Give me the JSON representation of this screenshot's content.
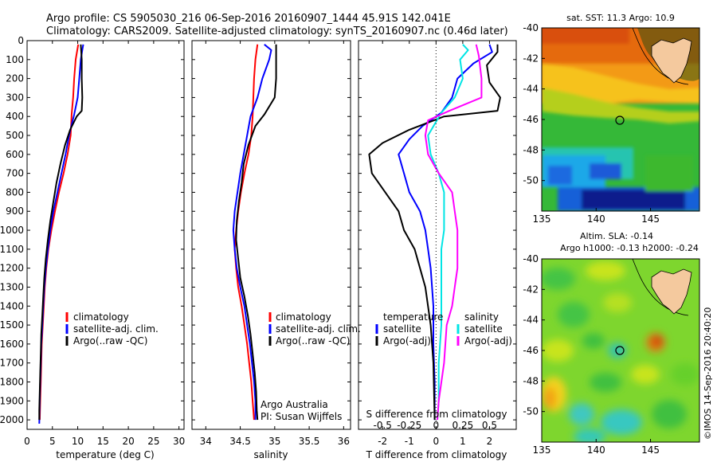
{
  "header": {
    "line1": "Argo profile: CS 5905030_216 06-Sep-2016 20160907_1444 45.91S 142.041E",
    "line2": "Climatology: CARS2009. Satellite-adjusted climatology: synTS_20160907.nc (0.46d later)"
  },
  "colors": {
    "climatology": "#ff0000",
    "satellite": "#0000ff",
    "argo": "#000000",
    "satellite_salinity": "#00e5e5",
    "argo_salinity": "#ff00ff"
  },
  "chart_data": [
    {
      "id": "temperature",
      "type": "line",
      "xlabel": "temperature (deg C)",
      "ylabel": "",
      "xlim": [
        0,
        31
      ],
      "ylim": [
        2050,
        0
      ],
      "xticks": [
        0,
        5,
        10,
        15,
        20,
        25,
        30
      ],
      "yticks": [
        0,
        100,
        200,
        300,
        400,
        500,
        600,
        700,
        800,
        900,
        1000,
        1100,
        1200,
        1300,
        1400,
        1500,
        1600,
        1700,
        1800,
        1900,
        2000
      ],
      "legend": [
        "climatology",
        "satellite-adj. clim.",
        "Argo(..raw -QC)"
      ],
      "series": [
        {
          "name": "climatology",
          "color": "#ff0000",
          "points": [
            [
              10.1,
              20
            ],
            [
              9.6,
              100
            ],
            [
              9.3,
              200
            ],
            [
              9.1,
              300
            ],
            [
              8.8,
              390
            ],
            [
              8.6,
              500
            ],
            [
              8.0,
              600
            ],
            [
              7.2,
              700
            ],
            [
              6.3,
              800
            ],
            [
              5.5,
              900
            ],
            [
              4.8,
              1000
            ],
            [
              4.2,
              1100
            ],
            [
              3.8,
              1200
            ],
            [
              3.5,
              1300
            ],
            [
              3.3,
              1400
            ],
            [
              3.1,
              1500
            ],
            [
              2.9,
              1600
            ],
            [
              2.8,
              1700
            ],
            [
              2.7,
              1800
            ],
            [
              2.6,
              1900
            ],
            [
              2.5,
              2000
            ]
          ]
        },
        {
          "name": "satellite-adj. clim.",
          "color": "#0000ff",
          "points": [
            [
              11.1,
              20
            ],
            [
              10.9,
              50
            ],
            [
              10.6,
              100
            ],
            [
              10.3,
              200
            ],
            [
              10.0,
              300
            ],
            [
              9.3,
              390
            ],
            [
              8.3,
              500
            ],
            [
              7.6,
              600
            ],
            [
              6.8,
              700
            ],
            [
              6.0,
              800
            ],
            [
              5.2,
              900
            ],
            [
              4.6,
              1000
            ],
            [
              4.1,
              1100
            ],
            [
              3.7,
              1200
            ],
            [
              3.4,
              1300
            ],
            [
              3.2,
              1400
            ],
            [
              3.0,
              1500
            ],
            [
              2.8,
              1600
            ],
            [
              2.7,
              1700
            ],
            [
              2.6,
              1800
            ],
            [
              2.5,
              1900
            ],
            [
              2.4,
              2020
            ]
          ]
        },
        {
          "name": "Argo(..raw -QC)",
          "color": "#000000",
          "points": [
            [
              10.6,
              20
            ],
            [
              10.8,
              100
            ],
            [
              10.8,
              200
            ],
            [
              10.9,
              300
            ],
            [
              10.8,
              370
            ],
            [
              9.8,
              400
            ],
            [
              8.5,
              470
            ],
            [
              7.5,
              550
            ],
            [
              6.6,
              650
            ],
            [
              5.8,
              750
            ],
            [
              5.2,
              850
            ],
            [
              4.6,
              950
            ],
            [
              4.1,
              1050
            ],
            [
              3.7,
              1150
            ],
            [
              3.4,
              1250
            ],
            [
              3.2,
              1350
            ],
            [
              3.0,
              1450
            ],
            [
              2.8,
              1550
            ],
            [
              2.7,
              1650
            ],
            [
              2.6,
              1750
            ],
            [
              2.5,
              1850
            ],
            [
              2.4,
              1950
            ],
            [
              2.4,
              2000
            ]
          ]
        }
      ]
    },
    {
      "id": "salinity",
      "type": "line",
      "xlabel": "salinity",
      "ylabel": "",
      "xlim": [
        33.8,
        36.1
      ],
      "ylim": [
        2050,
        0
      ],
      "xticks": [
        34,
        34.5,
        35,
        35.5,
        36
      ],
      "legend": [
        "climatology",
        "satellite-adj. clim.",
        "Argo(..raw -QC)"
      ],
      "annotations": [
        "Argo Australia",
        "PI: Susan Wijffels"
      ],
      "series": [
        {
          "name": "climatology",
          "color": "#ff0000",
          "points": [
            [
              34.75,
              20
            ],
            [
              34.72,
              100
            ],
            [
              34.7,
              200
            ],
            [
              34.69,
              300
            ],
            [
              34.68,
              400
            ],
            [
              34.66,
              500
            ],
            [
              34.62,
              600
            ],
            [
              34.56,
              700
            ],
            [
              34.51,
              800
            ],
            [
              34.47,
              900
            ],
            [
              34.44,
              1000
            ],
            [
              34.42,
              1100
            ],
            [
              34.44,
              1200
            ],
            [
              34.47,
              1300
            ],
            [
              34.52,
              1400
            ],
            [
              34.56,
              1500
            ],
            [
              34.6,
              1600
            ],
            [
              34.63,
              1700
            ],
            [
              34.66,
              1800
            ],
            [
              34.68,
              1900
            ],
            [
              34.7,
              2000
            ]
          ]
        },
        {
          "name": "satellite-adj. clim.",
          "color": "#0000ff",
          "points": [
            [
              34.85,
              20
            ],
            [
              34.95,
              50
            ],
            [
              34.92,
              100
            ],
            [
              34.82,
              200
            ],
            [
              34.75,
              300
            ],
            [
              34.65,
              400
            ],
            [
              34.6,
              500
            ],
            [
              34.55,
              600
            ],
            [
              34.5,
              700
            ],
            [
              34.46,
              800
            ],
            [
              34.42,
              900
            ],
            [
              34.4,
              1000
            ],
            [
              34.42,
              1100
            ],
            [
              34.45,
              1200
            ],
            [
              34.5,
              1300
            ],
            [
              34.56,
              1400
            ],
            [
              34.6,
              1500
            ],
            [
              34.64,
              1600
            ],
            [
              34.67,
              1700
            ],
            [
              34.7,
              1800
            ],
            [
              34.72,
              1900
            ],
            [
              34.72,
              2000
            ]
          ]
        },
        {
          "name": "Argo(..raw -QC)",
          "color": "#000000",
          "points": [
            [
              35.02,
              20
            ],
            [
              35.02,
              100
            ],
            [
              35.02,
              200
            ],
            [
              35.0,
              300
            ],
            [
              34.85,
              390
            ],
            [
              34.72,
              450
            ],
            [
              34.62,
              550
            ],
            [
              34.55,
              650
            ],
            [
              34.52,
              750
            ],
            [
              34.48,
              850
            ],
            [
              34.45,
              950
            ],
            [
              34.44,
              1050
            ],
            [
              34.47,
              1150
            ],
            [
              34.5,
              1250
            ],
            [
              34.56,
              1350
            ],
            [
              34.61,
              1450
            ],
            [
              34.65,
              1550
            ],
            [
              34.68,
              1650
            ],
            [
              34.71,
              1750
            ],
            [
              34.73,
              1850
            ],
            [
              34.74,
              1950
            ],
            [
              34.75,
              2000
            ]
          ]
        }
      ]
    },
    {
      "id": "difference",
      "type": "line",
      "xlabel": "T difference from climatology",
      "secondary_xlabel": "S difference from climatology",
      "ylabel": "",
      "xlim": [
        -2.9,
        3.0
      ],
      "ylim": [
        2050,
        0
      ],
      "xticks": [
        -2,
        -1,
        0,
        1,
        2
      ],
      "secondary_xticks": [
        "-0.5",
        "-0.25",
        "0",
        "0.25",
        "0.5"
      ],
      "legend_groups": [
        {
          "title": "temperature",
          "entries": [
            "satellite",
            "Argo(-adj)"
          ]
        },
        {
          "title": "salinity",
          "entries": [
            "satellite",
            "Argo(-adj)"
          ]
        }
      ],
      "series": [
        {
          "name": "temperature satellite",
          "color": "#0000ff",
          "points": [
            [
              2.0,
              20
            ],
            [
              2.1,
              60
            ],
            [
              1.4,
              120
            ],
            [
              0.8,
              200
            ],
            [
              0.6,
              300
            ],
            [
              0.2,
              380
            ],
            [
              -0.5,
              450
            ],
            [
              -1.0,
              520
            ],
            [
              -1.4,
              600
            ],
            [
              -1.2,
              700
            ],
            [
              -1.0,
              800
            ],
            [
              -0.6,
              900
            ],
            [
              -0.4,
              1000
            ],
            [
              -0.3,
              1100
            ],
            [
              -0.2,
              1200
            ],
            [
              -0.1,
              1400
            ],
            [
              -0.1,
              1600
            ],
            [
              -0.05,
              1800
            ],
            [
              -0.05,
              2000
            ]
          ]
        },
        {
          "name": "temperature Argo(-adj)",
          "color": "#000000",
          "points": [
            [
              2.3,
              20
            ],
            [
              2.3,
              60
            ],
            [
              1.9,
              130
            ],
            [
              2.0,
              220
            ],
            [
              2.4,
              300
            ],
            [
              2.3,
              370
            ],
            [
              0.3,
              400
            ],
            [
              -1.0,
              470
            ],
            [
              -2.0,
              540
            ],
            [
              -2.5,
              600
            ],
            [
              -2.4,
              700
            ],
            [
              -1.9,
              800
            ],
            [
              -1.4,
              900
            ],
            [
              -1.2,
              1000
            ],
            [
              -0.8,
              1100
            ],
            [
              -0.6,
              1200
            ],
            [
              -0.4,
              1300
            ],
            [
              -0.2,
              1500
            ],
            [
              -0.1,
              1700
            ],
            [
              -0.05,
              2000
            ]
          ]
        },
        {
          "name": "salinity satellite",
          "color": "#00e5e5",
          "points": [
            [
              1.0,
              20
            ],
            [
              1.2,
              50
            ],
            [
              0.9,
              100
            ],
            [
              1.0,
              200
            ],
            [
              0.7,
              300
            ],
            [
              0.2,
              380
            ],
            [
              -0.3,
              500
            ],
            [
              -0.2,
              600
            ],
            [
              0.1,
              700
            ],
            [
              0.3,
              800
            ],
            [
              0.3,
              900
            ],
            [
              0.3,
              1000
            ],
            [
              0.2,
              1100
            ],
            [
              0.2,
              1300
            ],
            [
              0.2,
              1500
            ],
            [
              0.1,
              1700
            ],
            [
              0.1,
              1900
            ],
            [
              0.05,
              2000
            ]
          ]
        },
        {
          "name": "salinity Argo(-adj)",
          "color": "#ff00ff",
          "points": [
            [
              1.5,
              20
            ],
            [
              1.6,
              80
            ],
            [
              1.7,
              200
            ],
            [
              1.7,
              300
            ],
            [
              0.5,
              370
            ],
            [
              -0.3,
              420
            ],
            [
              -0.4,
              500
            ],
            [
              -0.3,
              600
            ],
            [
              0.1,
              700
            ],
            [
              0.6,
              800
            ],
            [
              0.7,
              900
            ],
            [
              0.8,
              1000
            ],
            [
              0.8,
              1100
            ],
            [
              0.8,
              1200
            ],
            [
              0.7,
              1300
            ],
            [
              0.6,
              1400
            ],
            [
              0.4,
              1500
            ],
            [
              0.3,
              1700
            ],
            [
              0.1,
              1900
            ],
            [
              0.05,
              2000
            ]
          ]
        }
      ]
    },
    {
      "id": "sst-map",
      "type": "heatmap",
      "title": "sat. SST: 11.3 Argo: 10.9",
      "xlim": [
        135,
        149.5
      ],
      "ylim": [
        -52,
        -40
      ],
      "xticks": [
        135,
        140,
        145
      ],
      "yticks": [
        -40,
        -42,
        -44,
        -46,
        -48,
        -50
      ],
      "marker": {
        "lon": 142.04,
        "lat": -45.91
      }
    },
    {
      "id": "sla-map",
      "type": "heatmap",
      "title_line1": "Altim. SLA: -0.14",
      "title_line2": "Argo h1000: -0.13 h2000: -0.24",
      "xlim": [
        135,
        149.5
      ],
      "ylim": [
        -52,
        -40
      ],
      "xticks": [
        135,
        140,
        145
      ],
      "yticks": [
        -40,
        -42,
        -44,
        -46,
        -48,
        -50
      ],
      "marker": {
        "lon": 142.04,
        "lat": -45.91
      }
    }
  ],
  "watermark": "©IMOS 14-Sep-2016 20:40:20"
}
